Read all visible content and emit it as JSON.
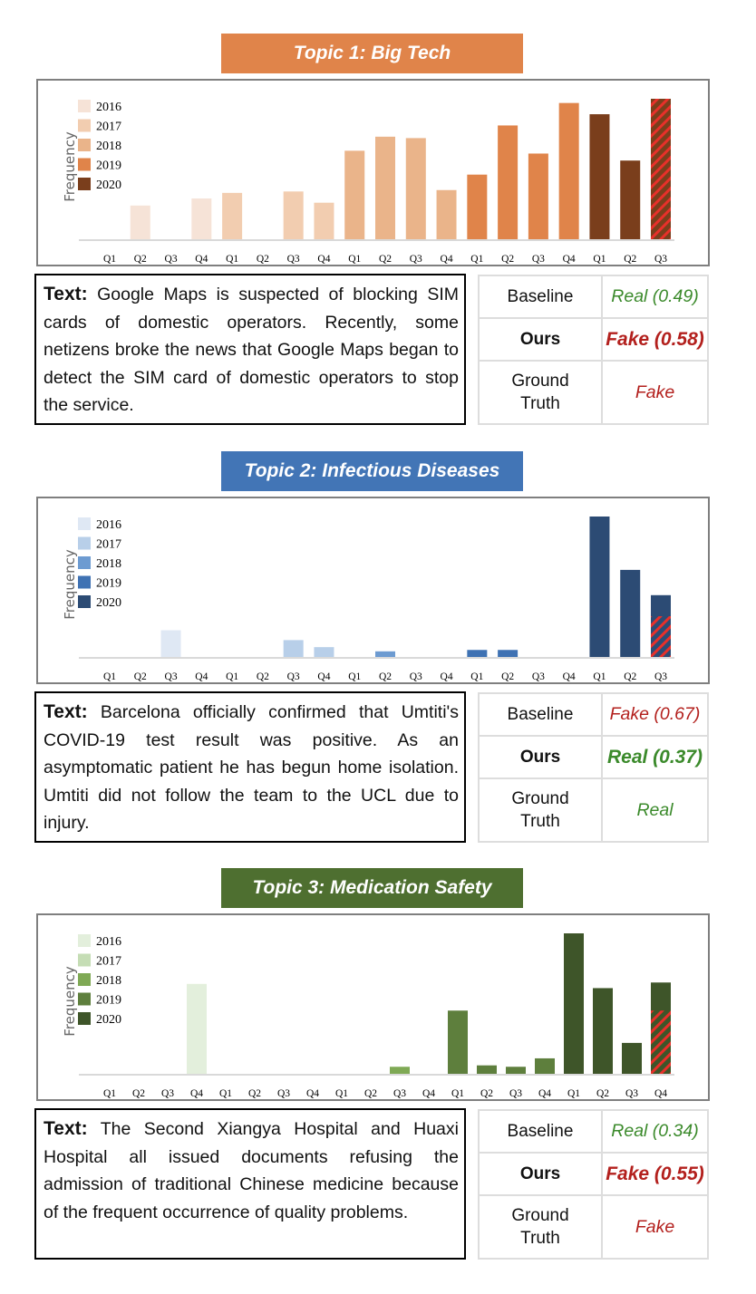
{
  "colors": {
    "real": "#3b8a2b",
    "fake": "#b3201d",
    "hatch": "#e8302a"
  },
  "legend_years": [
    "2016",
    "2017",
    "2018",
    "2019",
    "2020"
  ],
  "chart_data": [
    {
      "type": "bar",
      "title": "Topic 1: Big Tech",
      "ylabel": "Frequency",
      "xlabel": "",
      "ylim": [
        0,
        100
      ],
      "banner_color": "#e0844a",
      "year_colors": [
        "#f6e3d7",
        "#f2cdb0",
        "#eab48a",
        "#e0844a",
        "#7a3e1c"
      ],
      "categories": [
        "Q1",
        "Q2",
        "Q3",
        "Q4",
        "Q1",
        "Q2",
        "Q3",
        "Q4",
        "Q1",
        "Q2",
        "Q3",
        "Q4",
        "Q1",
        "Q2",
        "Q3",
        "Q4",
        "Q1",
        "Q2",
        "Q3"
      ],
      "years": [
        2016,
        2016,
        2016,
        2016,
        2017,
        2017,
        2017,
        2017,
        2018,
        2018,
        2018,
        2018,
        2019,
        2019,
        2019,
        2019,
        2020,
        2020,
        2020
      ],
      "values": [
        0,
        24,
        0,
        29,
        33,
        0,
        34,
        26,
        63,
        73,
        72,
        35,
        46,
        81,
        61,
        97,
        89,
        56,
        100
      ],
      "hatched_portion": [
        0,
        0,
        0,
        0,
        0,
        0,
        0,
        0,
        0,
        0,
        0,
        0,
        0,
        0,
        0,
        0,
        0,
        0,
        100
      ]
    },
    {
      "type": "bar",
      "title": "Topic 2: Infectious Diseases",
      "ylabel": "Frequency",
      "xlabel": "",
      "ylim": [
        0,
        100
      ],
      "banner_color": "#4275b6",
      "year_colors": [
        "#dfe8f4",
        "#b8cfe9",
        "#6d9bd1",
        "#3f72b3",
        "#2c4b74"
      ],
      "categories": [
        "Q1",
        "Q2",
        "Q3",
        "Q4",
        "Q1",
        "Q2",
        "Q3",
        "Q4",
        "Q1",
        "Q2",
        "Q3",
        "Q4",
        "Q1",
        "Q2",
        "Q3",
        "Q4",
        "Q1",
        "Q2",
        "Q3"
      ],
      "years": [
        2016,
        2016,
        2016,
        2016,
        2017,
        2017,
        2017,
        2017,
        2018,
        2018,
        2018,
        2018,
        2019,
        2019,
        2019,
        2019,
        2020,
        2020,
        2020
      ],
      "values": [
        0,
        0,
        19,
        0,
        0,
        0,
        12,
        7,
        0,
        4,
        0,
        0,
        5,
        5,
        0,
        0,
        100,
        62,
        44
      ],
      "hatched_portion": [
        0,
        0,
        0,
        0,
        0,
        0,
        0,
        0,
        0,
        0,
        0,
        0,
        0,
        0,
        0,
        0,
        0,
        0,
        29
      ]
    },
    {
      "type": "bar",
      "title": "Topic 3: Medication Safety",
      "ylabel": "Frequency",
      "xlabel": "",
      "ylim": [
        0,
        100
      ],
      "banner_color": "#4e6f30",
      "year_colors": [
        "#e3efdc",
        "#c5ddb5",
        "#7fa955",
        "#5e7f3d",
        "#3e5529"
      ],
      "categories": [
        "Q1",
        "Q2",
        "Q3",
        "Q4",
        "Q1",
        "Q2",
        "Q3",
        "Q4",
        "Q1",
        "Q2",
        "Q3",
        "Q4",
        "Q1",
        "Q2",
        "Q3",
        "Q4",
        "Q1",
        "Q2",
        "Q3",
        "Q4"
      ],
      "years": [
        2016,
        2016,
        2016,
        2016,
        2017,
        2017,
        2017,
        2017,
        2018,
        2018,
        2018,
        2018,
        2019,
        2019,
        2019,
        2019,
        2020,
        2020,
        2020,
        2020
      ],
      "values": [
        0,
        0,
        0,
        64,
        0,
        0,
        0,
        0,
        0,
        0,
        5,
        0,
        45,
        6,
        5,
        11,
        100,
        61,
        22,
        65
      ],
      "hatched_portion": [
        0,
        0,
        0,
        0,
        0,
        0,
        0,
        0,
        0,
        0,
        0,
        0,
        0,
        0,
        0,
        0,
        0,
        0,
        0,
        45
      ]
    }
  ],
  "sections": [
    {
      "text_label": "Text:",
      "text": "Google Maps is suspected of blocking SIM cards of domestic operators. Recently, some netizens broke the news that Google Maps began to detect the SIM card of domestic operators to stop the service.",
      "rows": [
        {
          "key": "Baseline",
          "value": "Real (0.49)",
          "cls": "green"
        },
        {
          "key": "Ours",
          "value": "Fake (0.58)",
          "cls": "red bold"
        },
        {
          "key": "Ground Truth",
          "value": "Fake",
          "cls": "red"
        }
      ]
    },
    {
      "text_label": "Text:",
      "text": "Barcelona officially confirmed that Umtiti's COVID-19 test result was positive. As an asymptomatic patient he has begun home isolation. Umtiti did not follow the team to the UCL due to injury.",
      "rows": [
        {
          "key": "Baseline",
          "value": "Fake (0.67)",
          "cls": "red"
        },
        {
          "key": "Ours",
          "value": "Real (0.37)",
          "cls": "green bold"
        },
        {
          "key": "Ground Truth",
          "value": "Real",
          "cls": "green"
        }
      ]
    },
    {
      "text_label": "Text:",
      "text": "The Second Xiangya Hospital and Huaxi Hospital all issued documents refusing the admission of traditional Chinese medicine because of the frequent occurrence of quality problems.",
      "rows": [
        {
          "key": "Baseline",
          "value": "Real (0.34)",
          "cls": "green"
        },
        {
          "key": "Ours",
          "value": "Fake (0.55)",
          "cls": "red bold"
        },
        {
          "key": "Ground Truth",
          "value": "Fake",
          "cls": "red"
        }
      ]
    }
  ]
}
